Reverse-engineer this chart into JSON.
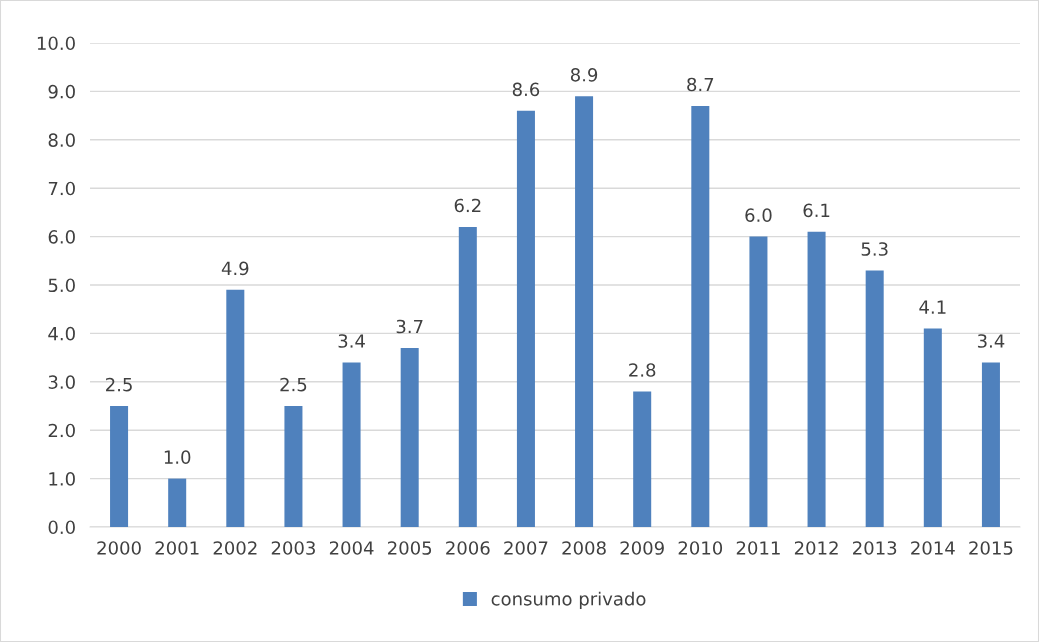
{
  "chart_data": {
    "type": "bar",
    "categories": [
      "2000",
      "2001",
      "2002",
      "2003",
      "2004",
      "2005",
      "2006",
      "2007",
      "2008",
      "2009",
      "2010",
      "2011",
      "2012",
      "2013",
      "2014",
      "2015"
    ],
    "series": [
      {
        "name": "consumo privado",
        "color": "#4f81bd",
        "values": [
          2.5,
          1.0,
          4.9,
          2.5,
          3.4,
          3.7,
          6.2,
          8.6,
          8.9,
          2.8,
          8.7,
          6.0,
          6.1,
          5.3,
          4.1,
          3.4
        ],
        "value_labels": [
          "2.5",
          "1.0",
          "4.9",
          "2.5",
          "3.4",
          "3.7",
          "6.2",
          "8.6",
          "8.9",
          "2.8",
          "8.7",
          "6.0",
          "6.1",
          "5.3",
          "4.1",
          "3.4"
        ]
      }
    ],
    "ylim": [
      0,
      10
    ],
    "yticks": [
      {
        "value": 0,
        "label": "0.0"
      },
      {
        "value": 1,
        "label": "1.0"
      },
      {
        "value": 2,
        "label": "2.0"
      },
      {
        "value": 3,
        "label": "3.0"
      },
      {
        "value": 4,
        "label": "4.0"
      },
      {
        "value": 5,
        "label": "5.0"
      },
      {
        "value": 6,
        "label": "6.0"
      },
      {
        "value": 7,
        "label": "7.0"
      },
      {
        "value": 8,
        "label": "8.0"
      },
      {
        "value": 9,
        "label": "9.0"
      },
      {
        "value": 10,
        "label": "10.0"
      }
    ],
    "grid": "y",
    "legend": "bottom"
  }
}
